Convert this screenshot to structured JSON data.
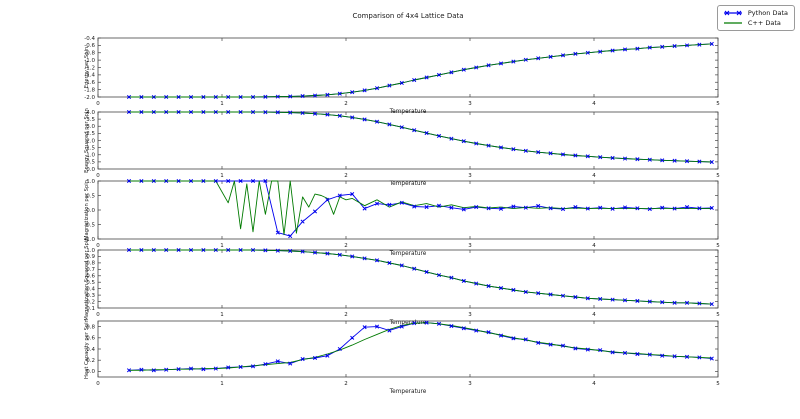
{
  "figure": {
    "title": "Comparison of 4x4 Lattice Data",
    "legend": {
      "position": "upper right",
      "items": [
        {
          "label": "Python Data",
          "color": "#0000ee",
          "marker": "x"
        },
        {
          "label": "C++ Data",
          "color": "#007a00",
          "marker": "none"
        }
      ]
    }
  },
  "chart_data": [
    {
      "type": "line",
      "ylabel": "Energy per Spin",
      "xlabel": "Temperature",
      "xlim": [
        0,
        5
      ],
      "ylim": [
        -2.0,
        -0.4
      ],
      "xticks": [
        0,
        1,
        2,
        3,
        4,
        5
      ],
      "xtick_labels": [
        "0",
        "1",
        "2",
        "3",
        "4",
        "5"
      ],
      "yticks": [
        -2.0,
        -1.8,
        -1.6,
        -1.4,
        -1.2,
        -1.0,
        -0.8,
        -0.6,
        -0.4
      ],
      "ytick_labels": [
        "-2.0",
        "-1.8",
        "-1.6",
        "-1.4",
        "-1.2",
        "-1.0",
        "-0.8",
        "-0.6",
        "-0.4"
      ],
      "grid": false,
      "x": [
        0.25,
        0.35,
        0.45,
        0.55,
        0.65,
        0.75,
        0.85,
        0.95,
        1.05,
        1.15,
        1.25,
        1.35,
        1.45,
        1.55,
        1.65,
        1.75,
        1.85,
        1.95,
        2.05,
        2.15,
        2.25,
        2.35,
        2.45,
        2.55,
        2.65,
        2.75,
        2.85,
        2.95,
        3.05,
        3.15,
        3.25,
        3.35,
        3.45,
        3.55,
        3.65,
        3.75,
        3.85,
        3.95,
        4.05,
        4.15,
        4.25,
        4.35,
        4.45,
        4.55,
        4.65,
        4.75,
        4.85,
        4.95
      ],
      "series": [
        {
          "name": "Python Data",
          "color": "#0000ee",
          "marker": "x",
          "y": [
            -2,
            -2,
            -2,
            -2,
            -2,
            -2,
            -2,
            -2,
            -2,
            -2,
            -2,
            -1.995,
            -1.99,
            -1.985,
            -1.975,
            -1.96,
            -1.94,
            -1.91,
            -1.87,
            -1.82,
            -1.76,
            -1.69,
            -1.62,
            -1.54,
            -1.47,
            -1.4,
            -1.33,
            -1.26,
            -1.2,
            -1.14,
            -1.09,
            -1.04,
            -0.99,
            -0.95,
            -0.91,
            -0.87,
            -0.83,
            -0.8,
            -0.77,
            -0.74,
            -0.71,
            -0.69,
            -0.66,
            -0.64,
            -0.62,
            -0.6,
            -0.58,
            -0.56
          ]
        },
        {
          "name": "C++ Data",
          "color": "#007a00",
          "marker": "none",
          "y": [
            -2,
            -2,
            -2,
            -2,
            -2,
            -2,
            -2,
            -2,
            -2,
            -2,
            -2,
            -1.995,
            -1.99,
            -1.985,
            -1.975,
            -1.96,
            -1.94,
            -1.91,
            -1.87,
            -1.82,
            -1.76,
            -1.69,
            -1.62,
            -1.54,
            -1.47,
            -1.4,
            -1.33,
            -1.26,
            -1.2,
            -1.14,
            -1.09,
            -1.04,
            -0.99,
            -0.95,
            -0.91,
            -0.87,
            -0.83,
            -0.8,
            -0.77,
            -0.74,
            -0.71,
            -0.69,
            -0.66,
            -0.64,
            -0.62,
            -0.6,
            -0.58,
            -0.56
          ]
        }
      ]
    },
    {
      "type": "line",
      "ylabel": "Energy Squared per Spin",
      "xlabel": "Temperature",
      "xlim": [
        0,
        5
      ],
      "ylim": [
        0.0,
        4.0
      ],
      "xticks": [
        0,
        1,
        2,
        3,
        4,
        5
      ],
      "xtick_labels": [
        "0",
        "1",
        "2",
        "3",
        "4",
        "5"
      ],
      "yticks": [
        0.0,
        0.5,
        1.0,
        1.5,
        2.0,
        2.5,
        3.0,
        3.5,
        4.0
      ],
      "ytick_labels": [
        "0.0",
        "0.5",
        "1.0",
        "1.5",
        "2.0",
        "2.5",
        "3.0",
        "3.5",
        "4.0"
      ],
      "grid": false,
      "x": [
        0.25,
        0.35,
        0.45,
        0.55,
        0.65,
        0.75,
        0.85,
        0.95,
        1.05,
        1.15,
        1.25,
        1.35,
        1.45,
        1.55,
        1.65,
        1.75,
        1.85,
        1.95,
        2.05,
        2.15,
        2.25,
        2.35,
        2.45,
        2.55,
        2.65,
        2.75,
        2.85,
        2.95,
        3.05,
        3.15,
        3.25,
        3.35,
        3.45,
        3.55,
        3.65,
        3.75,
        3.85,
        3.95,
        4.05,
        4.15,
        4.25,
        4.35,
        4.45,
        4.55,
        4.65,
        4.75,
        4.85,
        4.95
      ],
      "series": [
        {
          "name": "Python Data",
          "color": "#0000ee",
          "marker": "x",
          "y": [
            4,
            4,
            4,
            4,
            4,
            4,
            4,
            4,
            4,
            4,
            3.995,
            3.99,
            3.98,
            3.96,
            3.93,
            3.88,
            3.82,
            3.73,
            3.62,
            3.48,
            3.32,
            3.13,
            2.93,
            2.72,
            2.52,
            2.32,
            2.13,
            1.95,
            1.79,
            1.64,
            1.51,
            1.39,
            1.28,
            1.18,
            1.1,
            1.02,
            0.95,
            0.89,
            0.83,
            0.78,
            0.73,
            0.69,
            0.65,
            0.61,
            0.58,
            0.55,
            0.52,
            0.49
          ]
        },
        {
          "name": "C++ Data",
          "color": "#007a00",
          "marker": "none",
          "y": [
            4,
            4,
            4,
            4,
            4,
            4,
            4,
            4,
            4,
            4,
            3.995,
            3.99,
            3.98,
            3.96,
            3.93,
            3.88,
            3.82,
            3.73,
            3.62,
            3.48,
            3.32,
            3.13,
            2.93,
            2.72,
            2.52,
            2.32,
            2.13,
            1.95,
            1.79,
            1.64,
            1.51,
            1.39,
            1.28,
            1.18,
            1.1,
            1.02,
            0.95,
            0.89,
            0.83,
            0.78,
            0.73,
            0.69,
            0.65,
            0.61,
            0.58,
            0.55,
            0.52,
            0.49
          ]
        }
      ]
    },
    {
      "type": "line",
      "ylabel": "Magnetization per Spin",
      "xlabel": "Temperature",
      "xlim": [
        0,
        5
      ],
      "ylim": [
        -1.0,
        1.0
      ],
      "xticks": [
        0,
        1,
        2,
        3,
        4,
        5
      ],
      "xtick_labels": [
        "0",
        "1",
        "2",
        "3",
        "4",
        "5"
      ],
      "yticks": [
        -1.0,
        -0.5,
        0.0,
        0.5,
        1.0
      ],
      "ytick_labels": [
        "-1.0",
        "-0.5",
        "0.0",
        "0.5",
        "1.0"
      ],
      "grid": false,
      "x": [
        0.25,
        0.35,
        0.45,
        0.55,
        0.65,
        0.75,
        0.85,
        0.95,
        1.05,
        1.15,
        1.25,
        1.35,
        1.45,
        1.55,
        1.65,
        1.75,
        1.85,
        1.95,
        2.05,
        2.15,
        2.25,
        2.35,
        2.45,
        2.55,
        2.65,
        2.75,
        2.85,
        2.95,
        3.05,
        3.15,
        3.25,
        3.35,
        3.45,
        3.55,
        3.65,
        3.75,
        3.85,
        3.95,
        4.05,
        4.15,
        4.25,
        4.35,
        4.45,
        4.55,
        4.65,
        4.75,
        4.85,
        4.95
      ],
      "series": [
        {
          "name": "Python Data",
          "color": "#0000ee",
          "marker": "x",
          "y": [
            1,
            1,
            1,
            1,
            1,
            1,
            1,
            1,
            1,
            1,
            1,
            1,
            -0.78,
            -0.9,
            -0.4,
            -0.05,
            0.35,
            0.5,
            0.55,
            0.05,
            0.22,
            0.18,
            0.25,
            0.12,
            0.1,
            0.15,
            0.08,
            0.02,
            0.1,
            0.06,
            0.04,
            0.12,
            0.08,
            0.14,
            0.06,
            0.03,
            0.1,
            0.05,
            0.08,
            0.04,
            0.09,
            0.06,
            0.03,
            0.08,
            0.05,
            0.1,
            0.06,
            0.07
          ]
        },
        {
          "name": "C++ Data",
          "color": "#007a00",
          "marker": "none",
          "x": [
            0.25,
            0.35,
            0.45,
            0.55,
            0.65,
            0.75,
            0.85,
            0.95,
            1.05,
            1.1,
            1.15,
            1.2,
            1.25,
            1.3,
            1.35,
            1.4,
            1.45,
            1.5,
            1.55,
            1.6,
            1.65,
            1.7,
            1.75,
            1.8,
            1.85,
            1.9,
            1.95,
            2.0,
            2.05,
            2.15,
            2.25,
            2.35,
            2.45,
            2.55,
            2.65,
            2.75,
            2.85,
            2.95,
            3.05,
            3.15,
            3.25,
            3.35,
            3.45,
            3.55,
            3.65,
            3.75,
            3.85,
            3.95,
            4.05,
            4.15,
            4.25,
            4.35,
            4.45,
            4.55,
            4.65,
            4.75,
            4.85,
            4.95
          ],
          "y": [
            1,
            1,
            1,
            1,
            1,
            1,
            1,
            1,
            0.25,
            1.0,
            -0.65,
            0.9,
            -0.75,
            1.0,
            -0.15,
            1.0,
            1.0,
            -0.85,
            1.0,
            -0.8,
            0.45,
            0.1,
            0.55,
            0.5,
            0.4,
            -0.15,
            0.45,
            0.35,
            0.4,
            0.15,
            0.35,
            0.1,
            0.28,
            0.15,
            0.22,
            0.1,
            0.18,
            0.08,
            0.12,
            0.07,
            0.1,
            0.05,
            0.09,
            0.06,
            0.08,
            0.05,
            0.07,
            0.05,
            0.06,
            0.05,
            0.06,
            0.05,
            0.05,
            0.06,
            0.05,
            0.05,
            0.05,
            0.05
          ]
        }
      ]
    },
    {
      "type": "line",
      "ylabel": "Magnetization Squared per Spin",
      "xlabel": "Temperature",
      "xlim": [
        0,
        5
      ],
      "ylim": [
        0.1,
        1.0
      ],
      "xticks": [
        0,
        1,
        2,
        3,
        4,
        5
      ],
      "xtick_labels": [
        "0",
        "1",
        "2",
        "3",
        "4",
        "5"
      ],
      "yticks": [
        0.1,
        0.2,
        0.3,
        0.4,
        0.5,
        0.6,
        0.7,
        0.8,
        0.9,
        1.0
      ],
      "ytick_labels": [
        "0.1",
        "0.2",
        "0.3",
        "0.4",
        "0.5",
        "0.6",
        "0.7",
        "0.8",
        "0.9",
        "1.0"
      ],
      "grid": false,
      "x": [
        0.25,
        0.35,
        0.45,
        0.55,
        0.65,
        0.75,
        0.85,
        0.95,
        1.05,
        1.15,
        1.25,
        1.35,
        1.45,
        1.55,
        1.65,
        1.75,
        1.85,
        1.95,
        2.05,
        2.15,
        2.25,
        2.35,
        2.45,
        2.55,
        2.65,
        2.75,
        2.85,
        2.95,
        3.05,
        3.15,
        3.25,
        3.35,
        3.45,
        3.55,
        3.65,
        3.75,
        3.85,
        3.95,
        4.05,
        4.15,
        4.25,
        4.35,
        4.45,
        4.55,
        4.65,
        4.75,
        4.85,
        4.95
      ],
      "series": [
        {
          "name": "Python Data",
          "color": "#0000ee",
          "marker": "x",
          "y": [
            1,
            1,
            1,
            1,
            1,
            1,
            1,
            1,
            1,
            1,
            1,
            0.995,
            0.99,
            0.985,
            0.975,
            0.96,
            0.945,
            0.925,
            0.9,
            0.87,
            0.84,
            0.8,
            0.76,
            0.71,
            0.66,
            0.61,
            0.57,
            0.52,
            0.48,
            0.44,
            0.41,
            0.38,
            0.35,
            0.33,
            0.31,
            0.29,
            0.27,
            0.25,
            0.24,
            0.23,
            0.22,
            0.21,
            0.2,
            0.19,
            0.18,
            0.18,
            0.17,
            0.16
          ]
        },
        {
          "name": "C++ Data",
          "color": "#007a00",
          "marker": "none",
          "y": [
            1,
            1,
            1,
            1,
            1,
            1,
            1,
            1,
            1,
            1,
            1,
            0.995,
            0.99,
            0.985,
            0.975,
            0.96,
            0.945,
            0.925,
            0.9,
            0.87,
            0.84,
            0.8,
            0.76,
            0.71,
            0.66,
            0.61,
            0.57,
            0.52,
            0.48,
            0.44,
            0.41,
            0.38,
            0.35,
            0.33,
            0.31,
            0.29,
            0.27,
            0.25,
            0.24,
            0.23,
            0.22,
            0.21,
            0.2,
            0.19,
            0.18,
            0.18,
            0.17,
            0.16
          ]
        }
      ]
    },
    {
      "type": "line",
      "ylabel": "Heat Capacity per Spin",
      "xlabel": "Temperature",
      "xlim": [
        0,
        5
      ],
      "ylim": [
        -0.1,
        0.9
      ],
      "xticks": [
        0,
        1,
        2,
        3,
        4,
        5
      ],
      "xtick_labels": [
        "0",
        "1",
        "2",
        "3",
        "4",
        "5"
      ],
      "yticks": [
        0.0,
        0.2,
        0.4,
        0.6,
        0.8
      ],
      "ytick_labels": [
        "0.0",
        "0.2",
        "0.4",
        "0.6",
        "0.8"
      ],
      "grid": false,
      "x": [
        0.25,
        0.35,
        0.45,
        0.55,
        0.65,
        0.75,
        0.85,
        0.95,
        1.05,
        1.15,
        1.25,
        1.35,
        1.45,
        1.55,
        1.65,
        1.75,
        1.85,
        1.95,
        2.05,
        2.15,
        2.25,
        2.35,
        2.45,
        2.55,
        2.65,
        2.75,
        2.85,
        2.95,
        3.05,
        3.15,
        3.25,
        3.35,
        3.45,
        3.55,
        3.65,
        3.75,
        3.85,
        3.95,
        4.05,
        4.15,
        4.25,
        4.35,
        4.45,
        4.55,
        4.65,
        4.75,
        4.85,
        4.95
      ],
      "series": [
        {
          "name": "Python Data",
          "color": "#0000ee",
          "marker": "x",
          "y": [
            0.02,
            0.03,
            0.02,
            0.03,
            0.04,
            0.05,
            0.04,
            0.05,
            0.07,
            0.08,
            0.09,
            0.13,
            0.18,
            0.14,
            0.22,
            0.24,
            0.28,
            0.4,
            0.6,
            0.79,
            0.8,
            0.73,
            0.8,
            0.86,
            0.87,
            0.85,
            0.81,
            0.77,
            0.73,
            0.7,
            0.64,
            0.59,
            0.57,
            0.51,
            0.48,
            0.46,
            0.41,
            0.39,
            0.38,
            0.34,
            0.33,
            0.31,
            0.3,
            0.28,
            0.27,
            0.26,
            0.25,
            0.23
          ]
        },
        {
          "name": "C++ Data",
          "color": "#007a00",
          "marker": "none",
          "y": [
            0.02,
            0.02,
            0.03,
            0.03,
            0.04,
            0.04,
            0.05,
            0.05,
            0.06,
            0.08,
            0.1,
            0.12,
            0.14,
            0.16,
            0.21,
            0.25,
            0.31,
            0.38,
            0.47,
            0.57,
            0.66,
            0.75,
            0.82,
            0.86,
            0.87,
            0.85,
            0.82,
            0.78,
            0.74,
            0.69,
            0.65,
            0.6,
            0.56,
            0.52,
            0.49,
            0.45,
            0.42,
            0.4,
            0.37,
            0.35,
            0.33,
            0.32,
            0.3,
            0.29,
            0.27,
            0.26,
            0.25,
            0.24
          ]
        }
      ]
    }
  ]
}
